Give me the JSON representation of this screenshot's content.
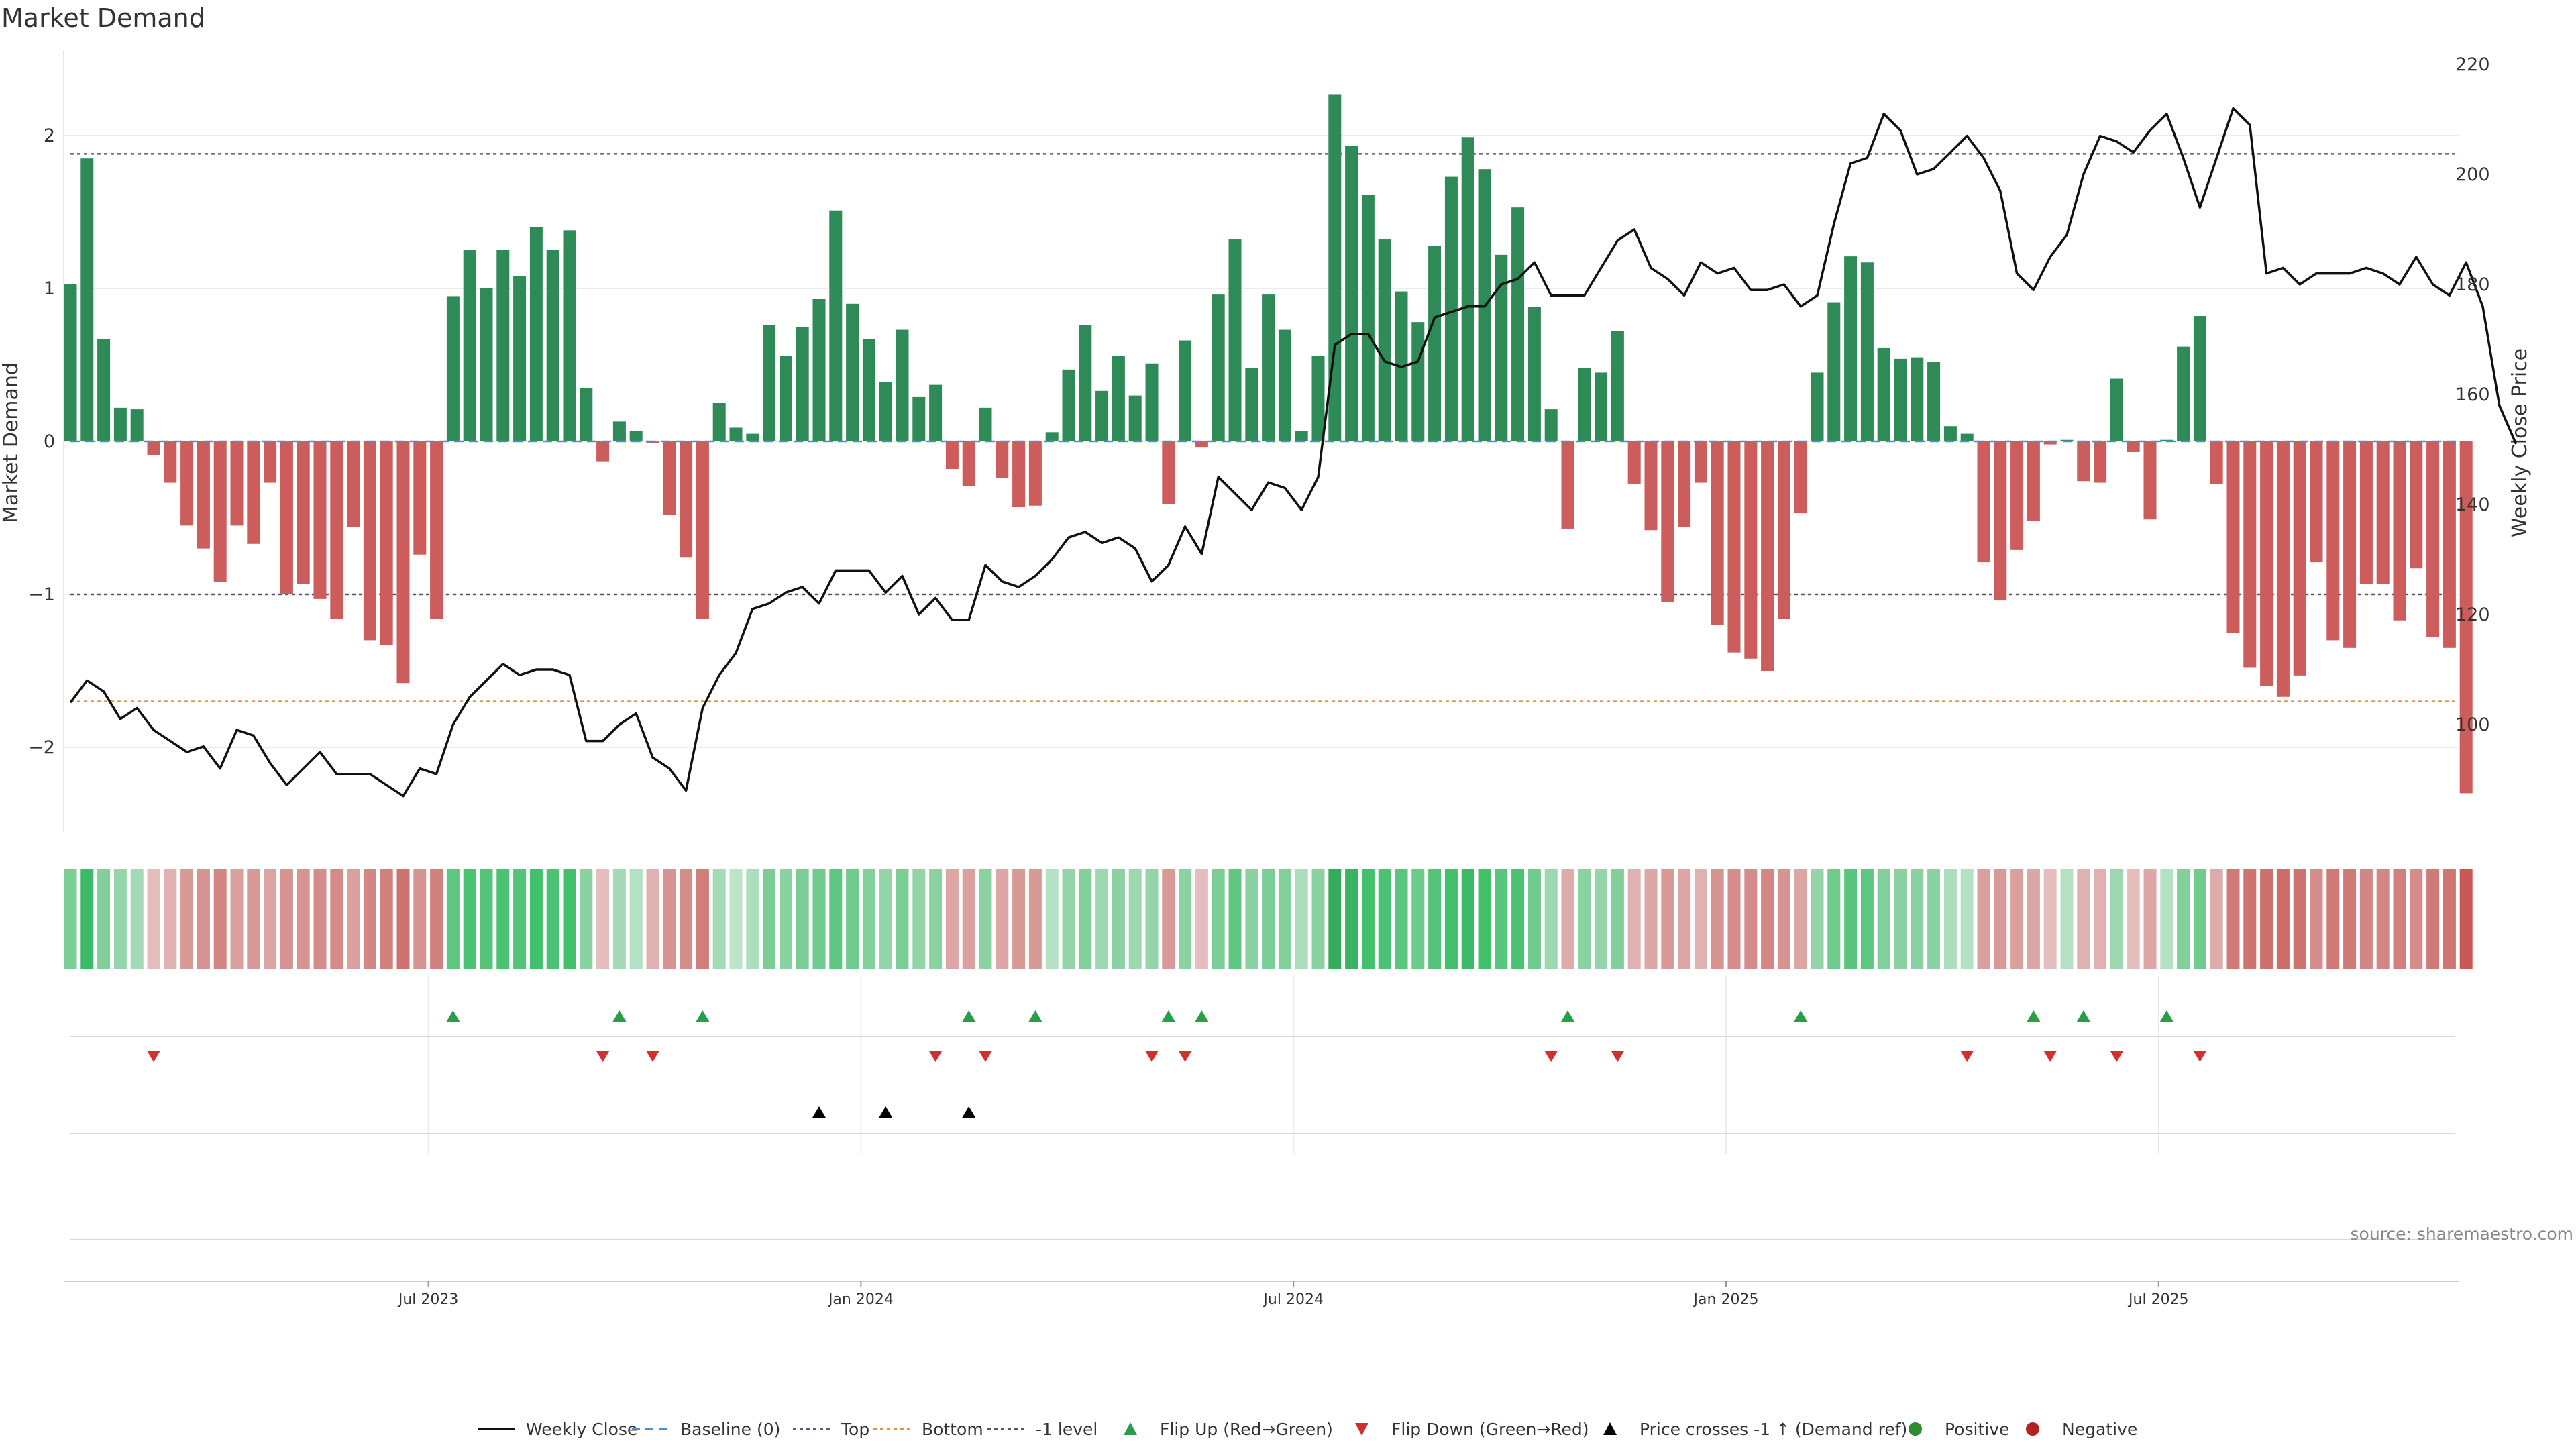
{
  "chart_data": {
    "type": "bar",
    "title": "Market Demand",
    "ylabel_left": "Market Demand",
    "ylabel_right": "Weekly Close Price",
    "y_left_ticks": [
      "2",
      "1",
      "0",
      "−1",
      "−2"
    ],
    "y_right_ticks": [
      "220",
      "200",
      "180",
      "160",
      "140",
      "120",
      "100"
    ],
    "ylim_left": [
      -2.55,
      2.55
    ],
    "ylim_right": [
      85,
      220
    ],
    "date_ticks": [
      {
        "label": "Jul 2023",
        "index": 22
      },
      {
        "label": "Jan 2024",
        "index": 48
      },
      {
        "label": "Jul 2024",
        "index": 74
      },
      {
        "label": "Jan 2025",
        "index": 100
      },
      {
        "label": "Jul 2025",
        "index": 126
      }
    ],
    "reference_lines": {
      "top": 1.88,
      "bottom": -1.7,
      "minus_one": -1.0,
      "baseline": 0
    },
    "demand": [
      1.03,
      1.85,
      0.67,
      0.22,
      0.21,
      -0.09,
      -0.27,
      -0.55,
      -0.7,
      -0.92,
      -0.55,
      -0.67,
      -0.27,
      -1.0,
      -0.93,
      -1.03,
      -1.16,
      -0.56,
      -1.3,
      -1.33,
      -1.58,
      -0.74,
      -1.16,
      0.95,
      1.25,
      1.0,
      1.25,
      1.08,
      1.4,
      1.25,
      1.38,
      0.35,
      -0.13,
      0.13,
      0.07,
      -0.01,
      -0.48,
      -0.76,
      -1.16,
      0.25,
      0.09,
      0.05,
      0.76,
      0.56,
      0.75,
      0.93,
      1.51,
      0.9,
      0.67,
      0.39,
      0.73,
      0.29,
      0.37,
      -0.18,
      -0.29,
      0.22,
      -0.24,
      -0.43,
      -0.42,
      0.06,
      0.47,
      0.76,
      0.33,
      0.56,
      0.3,
      0.51,
      -0.41,
      0.66,
      -0.04,
      0.96,
      1.32,
      0.48,
      0.96,
      0.73,
      0.07,
      0.56,
      2.27,
      1.93,
      1.61,
      1.32,
      0.98,
      0.78,
      1.28,
      1.73,
      1.99,
      1.78,
      1.22,
      1.53,
      0.88,
      0.21,
      -0.57,
      0.48,
      0.45,
      0.72,
      -0.28,
      -0.58,
      -1.05,
      -0.56,
      -0.27,
      -1.2,
      -1.38,
      -1.42,
      -1.5,
      -1.16,
      -0.47,
      0.45,
      0.91,
      1.21,
      1.17,
      0.61,
      0.54,
      0.55,
      0.52,
      0.1,
      0.05,
      -0.79,
      -1.04,
      -0.71,
      -0.52,
      -0.02,
      0.01,
      -0.26,
      -0.27,
      0.41,
      -0.07,
      -0.51,
      0.01,
      0.62,
      0.82,
      -0.28,
      -1.25,
      -1.48,
      -1.6,
      -1.67,
      -1.53,
      -0.79,
      -1.3,
      -1.35,
      -0.93,
      -0.93,
      -1.17,
      -0.83,
      -1.28,
      -1.35,
      -2.3
    ],
    "weekly_close": [
      104,
      108,
      106,
      101,
      103,
      99,
      97,
      95,
      96,
      92,
      99,
      98,
      93,
      89,
      92,
      95,
      91,
      91,
      91,
      89,
      87,
      92,
      91,
      100,
      105,
      108,
      111,
      109,
      110,
      110,
      109,
      97,
      97,
      100,
      102,
      94,
      92,
      88,
      103,
      109,
      113,
      121,
      122,
      124,
      125,
      122,
      128,
      128,
      128,
      124,
      127,
      120,
      123,
      119,
      119,
      129,
      126,
      125,
      127,
      130,
      134,
      135,
      133,
      134,
      132,
      126,
      129,
      136,
      131,
      145,
      142,
      139,
      144,
      143,
      139,
      145,
      169,
      171,
      171,
      166,
      165,
      166,
      174,
      175,
      176,
      176,
      180,
      181,
      184,
      178,
      178,
      178,
      183,
      188,
      190,
      183,
      181,
      178,
      184,
      182,
      183,
      179,
      179,
      180,
      176,
      178,
      191,
      202,
      203,
      211,
      208,
      200,
      201,
      204,
      207,
      203,
      197,
      182,
      179,
      185,
      189,
      200,
      207,
      206,
      204,
      208,
      211,
      203,
      194,
      203,
      212,
      209,
      182,
      183,
      180,
      182,
      182,
      182,
      183,
      182,
      180,
      185,
      180,
      178,
      184,
      176,
      158,
      151
    ],
    "heat_values": [
      0.55,
      0.9,
      0.5,
      0.38,
      0.3,
      -0.2,
      -0.3,
      -0.5,
      -0.55,
      -0.65,
      -0.45,
      -0.5,
      -0.42,
      -0.55,
      -0.55,
      -0.6,
      -0.62,
      -0.45,
      -0.65,
      -0.7,
      -0.8,
      -0.55,
      -0.7,
      0.7,
      0.8,
      0.75,
      0.8,
      0.75,
      0.85,
      0.8,
      0.85,
      0.45,
      -0.2,
      0.3,
      0.2,
      -0.3,
      -0.55,
      -0.6,
      -0.72,
      0.3,
      0.15,
      0.25,
      0.55,
      0.45,
      0.55,
      0.6,
      0.7,
      0.6,
      0.5,
      0.4,
      0.55,
      0.4,
      0.45,
      -0.4,
      -0.45,
      0.45,
      -0.4,
      -0.5,
      -0.5,
      0.2,
      0.4,
      0.5,
      0.35,
      0.45,
      0.35,
      0.4,
      -0.5,
      0.45,
      -0.2,
      0.55,
      0.7,
      0.45,
      0.55,
      0.5,
      0.25,
      0.45,
      1.0,
      0.95,
      0.85,
      0.8,
      0.72,
      0.62,
      0.75,
      0.85,
      0.9,
      0.85,
      0.72,
      0.8,
      0.6,
      0.35,
      -0.35,
      0.45,
      0.4,
      0.5,
      -0.3,
      -0.4,
      -0.5,
      -0.4,
      -0.3,
      -0.55,
      -0.6,
      -0.6,
      -0.65,
      -0.55,
      -0.4,
      0.4,
      0.6,
      0.72,
      0.7,
      0.5,
      0.45,
      0.45,
      0.45,
      0.25,
      0.2,
      -0.45,
      -0.5,
      -0.45,
      -0.4,
      -0.2,
      0.2,
      -0.3,
      -0.3,
      0.35,
      -0.2,
      -0.4,
      0.2,
      0.5,
      0.6,
      -0.35,
      -0.75,
      -0.8,
      -0.82,
      -0.85,
      -0.8,
      -0.6,
      -0.75,
      -0.75,
      -0.65,
      -0.65,
      -0.7,
      -0.6,
      -0.75,
      -0.78,
      -1.0
    ],
    "flip_up_indices": [
      23,
      33,
      38,
      54,
      58,
      66,
      68,
      90,
      104,
      118,
      121,
      126
    ],
    "flip_down_indices": [
      5,
      32,
      35,
      52,
      55,
      65,
      67,
      89,
      93,
      114,
      119,
      123,
      128
    ],
    "price_cross_indices": [
      45,
      49,
      54
    ],
    "legend": [
      {
        "label": "Weekly Close",
        "kind": "line"
      },
      {
        "label": "Baseline (0)",
        "kind": "baseline"
      },
      {
        "label": "Top",
        "kind": "dotted-top"
      },
      {
        "label": "Bottom",
        "kind": "dotted-bottom"
      },
      {
        "label": "-1 level",
        "kind": "dotted-minus1"
      },
      {
        "label": "Flip Up (Red→Green)",
        "kind": "tri-up-green"
      },
      {
        "label": "Flip Down (Green→Red)",
        "kind": "tri-down-red"
      },
      {
        "label": "Price crosses -1 ↑ (Demand ref)",
        "kind": "tri-up-black"
      },
      {
        "label": "Positive",
        "kind": "dot-green"
      },
      {
        "label": "Negative",
        "kind": "dot-red"
      }
    ],
    "source": "source: sharemaestro.com"
  },
  "colors": {
    "positive_bar": "#2e8b57",
    "negative_bar": "#cd5c5c",
    "price_line": "#111111",
    "top_line": "#5a5a8a",
    "bottom_line": "#e0913a",
    "minus_one_line": "#55556a",
    "baseline": "#4a90d9",
    "flip_up": "#2a9d4a",
    "flip_down": "#d03030",
    "cross_marker": "#000000",
    "legend_positive": "#2e8b2e",
    "legend_negative": "#b22222"
  }
}
